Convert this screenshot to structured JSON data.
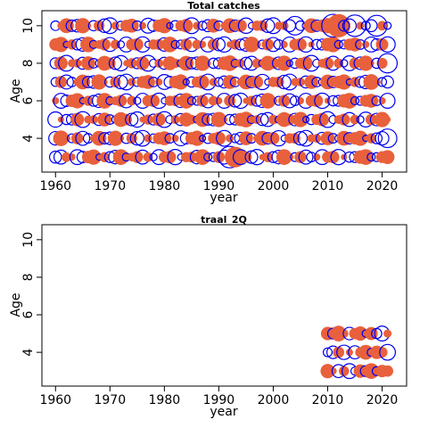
{
  "chart_data": [
    {
      "type": "bubble",
      "title": "Total catches",
      "xlabel": "year",
      "ylabel": "Age",
      "xlim": [
        1957.5,
        2024.5
      ],
      "ylim": [
        2.2,
        10.8
      ],
      "xticks": [
        1960,
        1970,
        1980,
        1990,
        2000,
        2010,
        2020
      ],
      "yticks": [
        4,
        6,
        8,
        10
      ],
      "years": [
        1960,
        2021
      ],
      "ages": [
        3,
        10
      ],
      "size_pattern": [
        0.2,
        0.75,
        0.3,
        0.95,
        0.45,
        0.15,
        0.6,
        0.85,
        0.35,
        0.55,
        0.25,
        0.7,
        0.4,
        0.9,
        0.5
      ],
      "sign_pattern": [
        1,
        0,
        0,
        1,
        1,
        0,
        1,
        0,
        0,
        1,
        0,
        1,
        1,
        0,
        1,
        0,
        0,
        1
      ],
      "notable_bubbles": [
        {
          "year": 1992,
          "age": 3,
          "size": 1.6,
          "sign": "negative"
        },
        {
          "year": 1993,
          "age": 3,
          "size": 1.5,
          "sign": "positive"
        },
        {
          "year": 2011,
          "age": 10,
          "size": 1.8,
          "sign": "negative"
        },
        {
          "year": 2012,
          "age": 10,
          "size": 1.9,
          "sign": "positive"
        },
        {
          "year": 2015,
          "age": 10,
          "size": 1.6,
          "sign": "negative"
        },
        {
          "year": 2019,
          "age": 10,
          "size": 1.5,
          "sign": "negative"
        },
        {
          "year": 2021,
          "age": 8,
          "size": 1.3,
          "sign": "negative"
        },
        {
          "year": 2021,
          "age": 4,
          "size": 1.2,
          "sign": "negative"
        },
        {
          "year": 2004,
          "age": 10,
          "size": 1.2,
          "sign": "negative"
        }
      ]
    },
    {
      "type": "bubble",
      "title": "traal_2Q",
      "xlabel": "year",
      "ylabel": "Age",
      "xlim": [
        1957.5,
        2024.5
      ],
      "ylim": [
        2.2,
        10.8
      ],
      "xticks": [
        1960,
        1970,
        1980,
        1990,
        2000,
        2010,
        2020
      ],
      "yticks": [
        4,
        6,
        8,
        10
      ],
      "years": [
        2010,
        2021
      ],
      "ages": [
        3,
        5
      ],
      "size_pattern": [
        0.3,
        0.85,
        0.5,
        0.7,
        0.2,
        0.95,
        0.4,
        0.6,
        0.25,
        0.8,
        0.45,
        0.65
      ],
      "sign_pattern": [
        1,
        0,
        1,
        1,
        0,
        1,
        0,
        0,
        1,
        0,
        1,
        0,
        1
      ],
      "colors": {
        "positive": "#E8603C",
        "negative": "#0000EE"
      }
    }
  ]
}
